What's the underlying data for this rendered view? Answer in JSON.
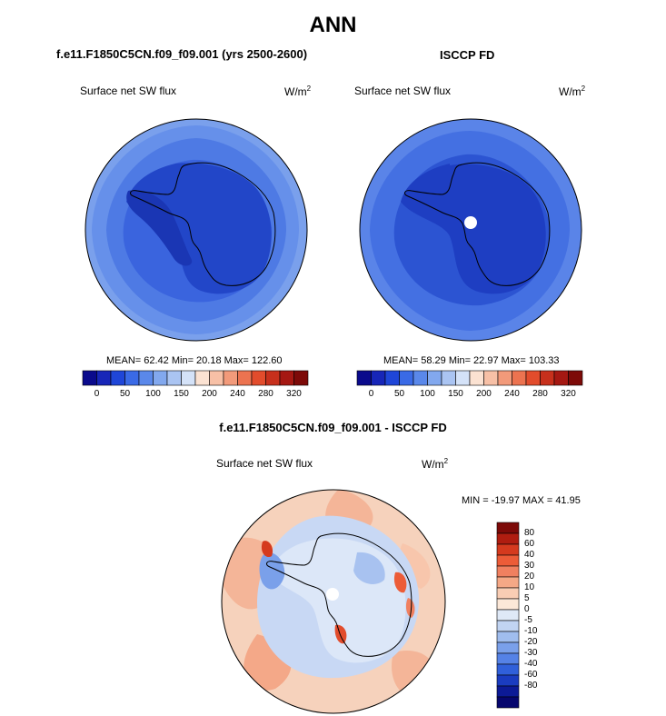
{
  "page": {
    "title": "ANN",
    "bottom_title": "f.e11.F1850C5CN.f09_f09.001 - ISCCP FD"
  },
  "panels": [
    {
      "case_title": "f.e11.F1850C5CN.f09_f09.001 (yrs 2500-2600)",
      "field": "Surface net SW flux",
      "units": "W/m",
      "units_exp": "2",
      "stats": "MEAN=  62.42  Min=  20.18  Max= 122.60"
    },
    {
      "case_title": "ISCCP FD",
      "field": "Surface net SW flux",
      "units": "W/m",
      "units_exp": "2",
      "stats": "MEAN=  58.29  Min=  22.97  Max= 103.33"
    },
    {
      "case_title": "",
      "field": "Surface net SW flux",
      "units": "W/m",
      "units_exp": "2",
      "stats": "MIN = -19.97 MAX =  41.95"
    }
  ],
  "colorbar_abs": {
    "colors": [
      "#0a0a8c",
      "#1726b8",
      "#1f46d8",
      "#3a6ae6",
      "#5a88ea",
      "#82a8ee",
      "#aac4f2",
      "#d4e2f8",
      "#fbe2d2",
      "#f7c0a6",
      "#f29a7a",
      "#ec7350",
      "#e24c2c",
      "#c7301c",
      "#a51812",
      "#7d0a08"
    ],
    "tick_labels": [
      "0",
      "50",
      "100",
      "150",
      "200",
      "240",
      "280",
      "320"
    ]
  },
  "colorbar_diff": {
    "colors": [
      "#7d0a08",
      "#b01d10",
      "#d53a1e",
      "#ec5c38",
      "#f08060",
      "#f5a886",
      "#f9cdb4",
      "#fce8d8",
      "#dfe9f7",
      "#c1d4f2",
      "#a0bdee",
      "#7aa0ea",
      "#5582e6",
      "#3060da",
      "#1a3cc0",
      "#0c1a96",
      "#06066e"
    ],
    "tick_labels": [
      "80",
      "60",
      "40",
      "30",
      "20",
      "10",
      "5",
      "0",
      "-5",
      "-10",
      "-20",
      "-30",
      "-40",
      "-60",
      "-80"
    ]
  },
  "colors": {
    "ocean_outer": "#7aa0ec",
    "ocean_mid": "#4a74e2",
    "ice_dark": "#1c3ec4",
    "diff_ocean": "#f6d2bc",
    "diff_ice": "#dce7f8"
  }
}
